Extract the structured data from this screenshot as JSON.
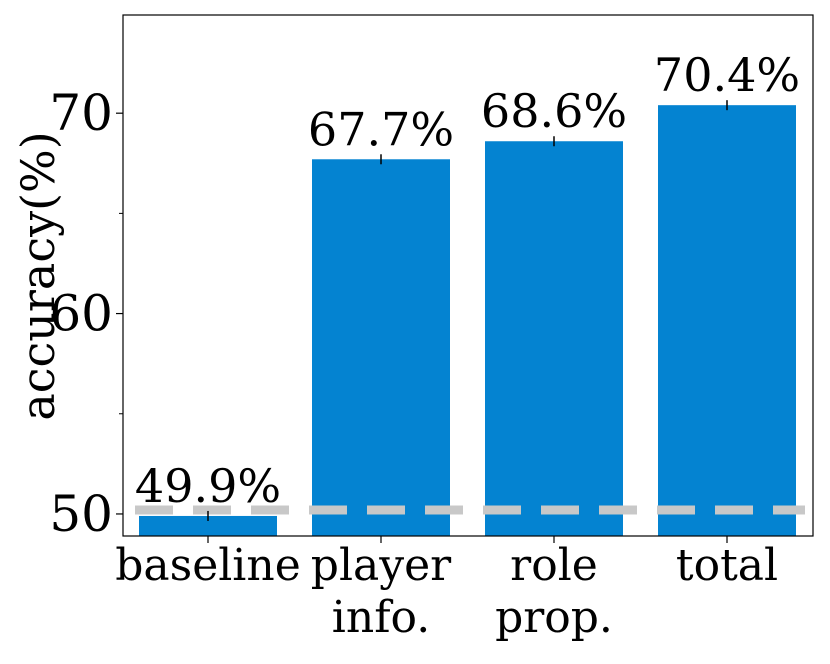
{
  "chart_data": {
    "type": "bar",
    "ylabel": "accuracy(%)",
    "xlabel": "",
    "ylim": [
      48.9,
      74.9
    ],
    "yticks_major": [
      50,
      60,
      70
    ],
    "yticks_minor": [
      55,
      65
    ],
    "categories": [
      {
        "lines": [
          "baseline"
        ]
      },
      {
        "lines": [
          "player",
          "info."
        ]
      },
      {
        "lines": [
          "role",
          "prop."
        ]
      },
      {
        "lines": [
          "total"
        ]
      }
    ],
    "values": [
      49.9,
      67.7,
      68.6,
      70.4
    ],
    "data_labels": [
      "49.9%",
      "67.7%",
      "68.6%",
      "70.4%"
    ],
    "reference_line": {
      "y": 50.2,
      "style": "dashed"
    },
    "colors": {
      "bar": "#0483d1",
      "reference_line": "#c8c8c8",
      "axis": "#000000"
    }
  }
}
